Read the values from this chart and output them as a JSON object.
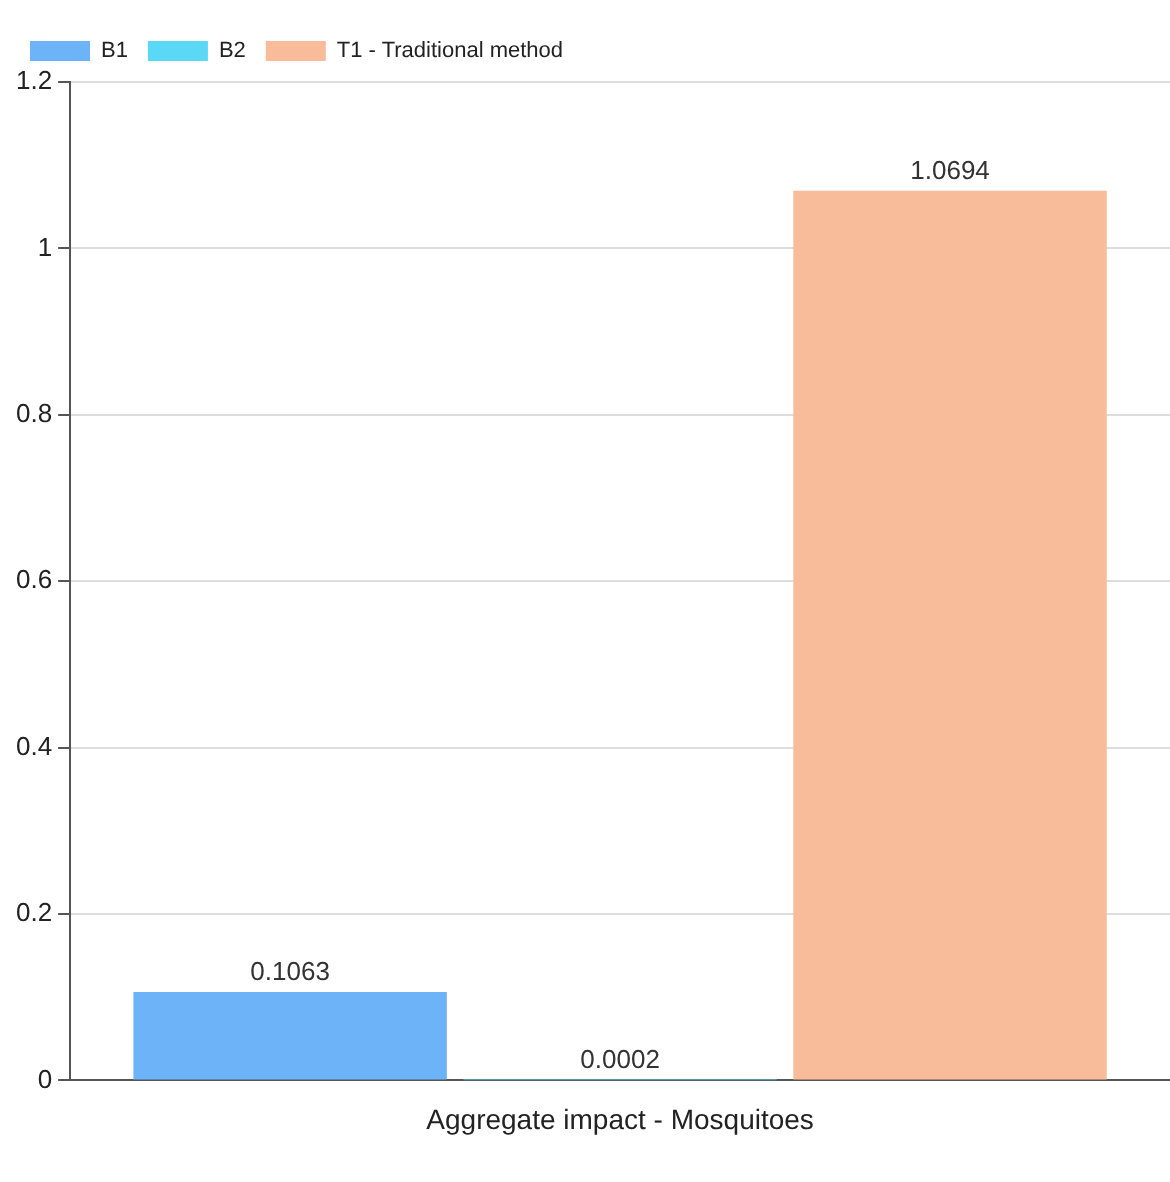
{
  "chart_data": {
    "type": "bar",
    "categories": [
      "Aggregate impact - Mosquitoes"
    ],
    "series": [
      {
        "name": "B1",
        "color": "#6cb4f7",
        "values": [
          0.1063
        ]
      },
      {
        "name": "B2",
        "color": "#5cd8f7",
        "values": [
          0.0002
        ]
      },
      {
        "name": "T1 - Traditional method",
        "color": "#f9bc9a",
        "values": [
          1.0694
        ]
      }
    ],
    "ylim": [
      0,
      1.2
    ],
    "yticks": [
      0,
      0.2,
      0.4,
      0.6,
      0.8,
      1,
      1.2
    ],
    "grid": "y",
    "legend": "top left",
    "data_labels": true
  }
}
